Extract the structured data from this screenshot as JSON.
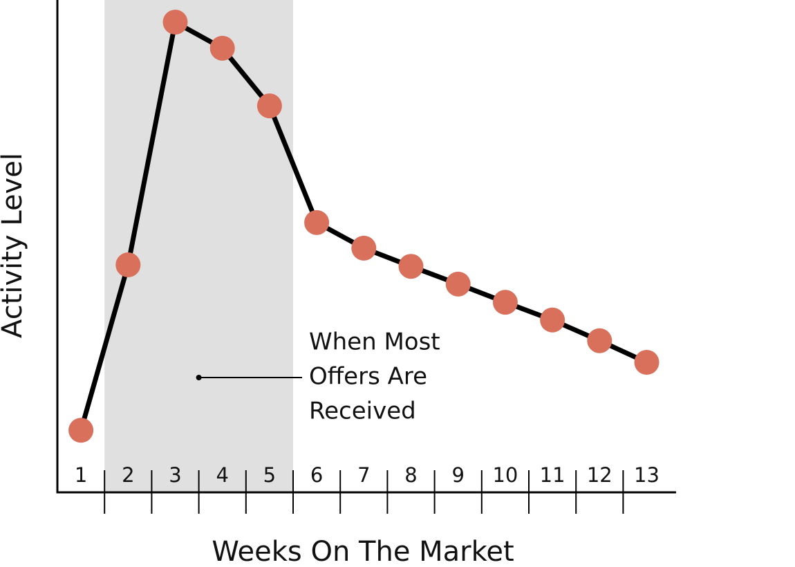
{
  "chart_data": {
    "type": "line",
    "y_label": "Activity Level",
    "x_label": "Weeks On The Market",
    "categories": [
      "1",
      "2",
      "3",
      "4",
      "5",
      "6",
      "7",
      "8",
      "9",
      "10",
      "11",
      "12",
      "13"
    ],
    "values": [
      12.6,
      46.2,
      95.5,
      90.2,
      78.5,
      54.8,
      49.6,
      45.9,
      42.3,
      38.6,
      35.0,
      30.8,
      26.4
    ],
    "ylim": [
      0,
      100
    ],
    "line_color": "#000000",
    "marker_color": "#d9705c",
    "highlight": {
      "span": [
        "2",
        "5"
      ],
      "color": "#e0e0e0",
      "text_lines": [
        "When Most",
        "Offers Are",
        "Received"
      ]
    }
  }
}
